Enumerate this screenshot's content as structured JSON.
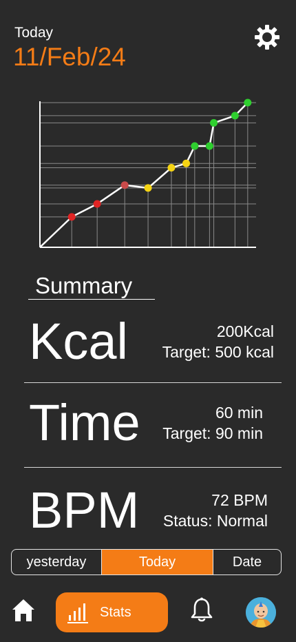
{
  "header": {
    "label": "Today",
    "date": "11/Feb/24"
  },
  "icons": {
    "settings": "gear-icon",
    "home": "home-icon",
    "stats": "bar-chart-icon",
    "notifications": "bell-icon",
    "profile": "avatar"
  },
  "colors": {
    "background": "#2a2a2a",
    "accent": "#f47c16",
    "point_red": "#e02424",
    "point_red_dim": "#c94a4a",
    "point_yellow": "#f5d414",
    "point_green": "#2fcf2f"
  },
  "chart_data": {
    "type": "line",
    "title": "",
    "xlabel": "",
    "ylabel": "",
    "grid": true,
    "xlim": [
      0,
      100
    ],
    "ylim": [
      0,
      100
    ],
    "points": [
      {
        "x": 0,
        "y": 0,
        "color": "none"
      },
      {
        "x": 15,
        "y": 21,
        "color": "#e02424"
      },
      {
        "x": 27,
        "y": 30,
        "color": "#e02424"
      },
      {
        "x": 40,
        "y": 43,
        "color": "#c94a4a"
      },
      {
        "x": 51,
        "y": 41,
        "color": "#f5d414"
      },
      {
        "x": 62,
        "y": 55,
        "color": "#f5d414"
      },
      {
        "x": 69,
        "y": 58,
        "color": "#f5d414"
      },
      {
        "x": 73,
        "y": 70,
        "color": "#2fcf2f"
      },
      {
        "x": 80,
        "y": 70,
        "color": "#2fcf2f"
      },
      {
        "x": 82,
        "y": 86,
        "color": "#2fcf2f"
      },
      {
        "x": 92,
        "y": 91,
        "color": "#2fcf2f"
      },
      {
        "x": 98,
        "y": 100,
        "color": "#2fcf2f"
      }
    ]
  },
  "summary": {
    "title": "Summary",
    "kcal": {
      "label": "Kcal",
      "value": "200Kcal",
      "detail": "Target: 500 kcal"
    },
    "time": {
      "label": "Time",
      "value": "60 min",
      "detail": "Target: 90 min"
    },
    "bpm": {
      "label": "BPM",
      "value": "72 BPM",
      "detail": "Status: Normal"
    }
  },
  "range": {
    "options": [
      "yesterday",
      "Today",
      "Date"
    ],
    "selected": "Today"
  },
  "nav": {
    "stats_label": "Stats"
  }
}
